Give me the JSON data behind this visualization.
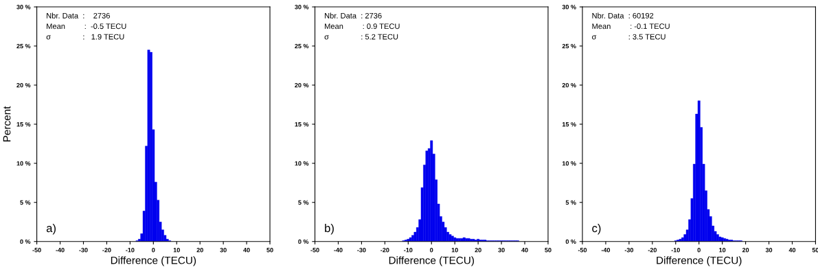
{
  "chart_data": [
    {
      "type": "histogram",
      "xlabel": "Difference (TECU)",
      "ylabel": "Percent",
      "bins": [
        -7.5,
        -6.5,
        -5.5,
        -4.5,
        -3.5,
        -2.5,
        -1.5,
        -0.5,
        0.5,
        1.5,
        2.5,
        3.5,
        4.5,
        5.5,
        6.5,
        7.5
      ],
      "values": [
        0.1,
        0.3,
        1.0,
        3.9,
        12.2,
        24.5,
        24.2,
        14.3,
        7.6,
        5.3,
        2.5,
        1.5,
        0.8,
        0.3,
        0.1
      ],
      "color": "#0000ee",
      "xlim": [
        -50,
        50
      ],
      "xticks": [
        -50,
        -40,
        -30,
        -20,
        -10,
        0,
        10,
        20,
        30,
        40,
        50
      ],
      "ylim": [
        0,
        30
      ],
      "yticks": [
        {
          "value": 0,
          "label": "0 %"
        },
        {
          "value": 5,
          "label": "5 %"
        },
        {
          "value": 10,
          "label": "10 %"
        },
        {
          "value": 15,
          "label": "15 %"
        },
        {
          "value": 20,
          "label": "20 %"
        },
        {
          "value": 25,
          "label": "25 %"
        },
        {
          "value": 30,
          "label": "30 %"
        }
      ],
      "annotations": [
        "Nbr. Data  :    2736",
        "Mean         :  -0.5 TECU",
        "σ               :   1.9 TECU",
        "a)"
      ]
    },
    {
      "type": "histogram",
      "xlabel": "Difference (TECU)",
      "bins": [
        -12.5,
        -11.5,
        -10.5,
        -9.5,
        -8.5,
        -7.5,
        -6.5,
        -5.5,
        -4.5,
        -3.5,
        -2.5,
        -1.5,
        -0.5,
        0.5,
        1.5,
        2.5,
        3.5,
        4.5,
        5.5,
        6.5,
        7.5,
        8.5,
        9.5,
        10.5,
        11.5,
        12.5,
        13.5,
        14.5,
        15.5,
        16.5,
        17.5,
        18.5,
        19.5,
        20.5,
        21.5,
        22.5,
        23.5,
        24.5,
        25.5,
        26.5,
        27.5,
        28.5,
        29.5,
        30.5,
        31.5,
        32.5,
        33.5,
        34.5,
        35.5,
        36.5,
        37.5
      ],
      "values": [
        0.1,
        0.2,
        0.3,
        0.5,
        0.8,
        1.2,
        1.8,
        2.8,
        6.9,
        9.8,
        11.6,
        11.9,
        12.9,
        11.2,
        7.9,
        4.8,
        3.2,
        2.5,
        1.8,
        1.2,
        0.9,
        0.7,
        0.5,
        0.4,
        0.4,
        0.4,
        0.5,
        0.4,
        0.4,
        0.3,
        0.3,
        0.2,
        0.3,
        0.2,
        0.2,
        0.2,
        0.1,
        0.1,
        0.1,
        0.1,
        0.1,
        0.1,
        0.1,
        0.1,
        0.1,
        0.1,
        0.1,
        0.1,
        0.1,
        0.1
      ],
      "color": "#0000ee",
      "xlim": [
        -50,
        50
      ],
      "xticks": [
        -50,
        -40,
        -30,
        -20,
        -10,
        0,
        10,
        20,
        30,
        40,
        50
      ],
      "ylim": [
        0,
        30
      ],
      "yticks": [
        {
          "value": 0,
          "label": "0 %"
        },
        {
          "value": 5,
          "label": "5 %"
        },
        {
          "value": 10,
          "label": "10 %"
        },
        {
          "value": 15,
          "label": "15 %"
        },
        {
          "value": 20,
          "label": "20 %"
        },
        {
          "value": 25,
          "label": "25 %"
        },
        {
          "value": 30,
          "label": "30 %"
        }
      ],
      "annotations": [
        "Nbr. Data  : 2736",
        "Mean         : 0.9 TECU",
        "σ               : 5.2 TECU",
        "b)"
      ]
    },
    {
      "type": "histogram",
      "xlabel": "Difference (TECU)",
      "bins": [
        -10.5,
        -9.5,
        -8.5,
        -7.5,
        -6.5,
        -5.5,
        -4.5,
        -3.5,
        -2.5,
        -1.5,
        -0.5,
        0.5,
        1.5,
        2.5,
        3.5,
        4.5,
        5.5,
        6.5,
        7.5,
        8.5,
        9.5,
        10.5,
        11.5,
        12.5,
        13.5,
        14.5,
        15.5,
        16.5,
        17.5,
        18.5
      ],
      "values": [
        0.1,
        0.2,
        0.3,
        0.5,
        0.9,
        1.5,
        2.8,
        5.5,
        9.9,
        16.3,
        18.0,
        14.6,
        9.9,
        6.5,
        4.1,
        3.2,
        2.0,
        1.3,
        0.9,
        0.6,
        0.5,
        0.4,
        0.3,
        0.2,
        0.2,
        0.1,
        0.1,
        0.1,
        0.1
      ],
      "color": "#0000ee",
      "xlim": [
        -50,
        50
      ],
      "xticks": [
        -50,
        -40,
        -30,
        -20,
        -10,
        0,
        10,
        20,
        30,
        40,
        50
      ],
      "ylim": [
        0,
        30
      ],
      "yticks": [
        {
          "value": 0,
          "label": "0 %"
        },
        {
          "value": 5,
          "label": "5 %"
        },
        {
          "value": 10,
          "label": "10 %"
        },
        {
          "value": 15,
          "label": "15 %"
        },
        {
          "value": 20,
          "label": "20 %"
        },
        {
          "value": 25,
          "label": "25 %"
        },
        {
          "value": 30,
          "label": "30 %"
        }
      ],
      "annotations": [
        "Nbr. Data  : 60192",
        "Mean         : -0.1 TECU",
        "σ               : 3.5 TECU",
        "c)"
      ]
    }
  ]
}
